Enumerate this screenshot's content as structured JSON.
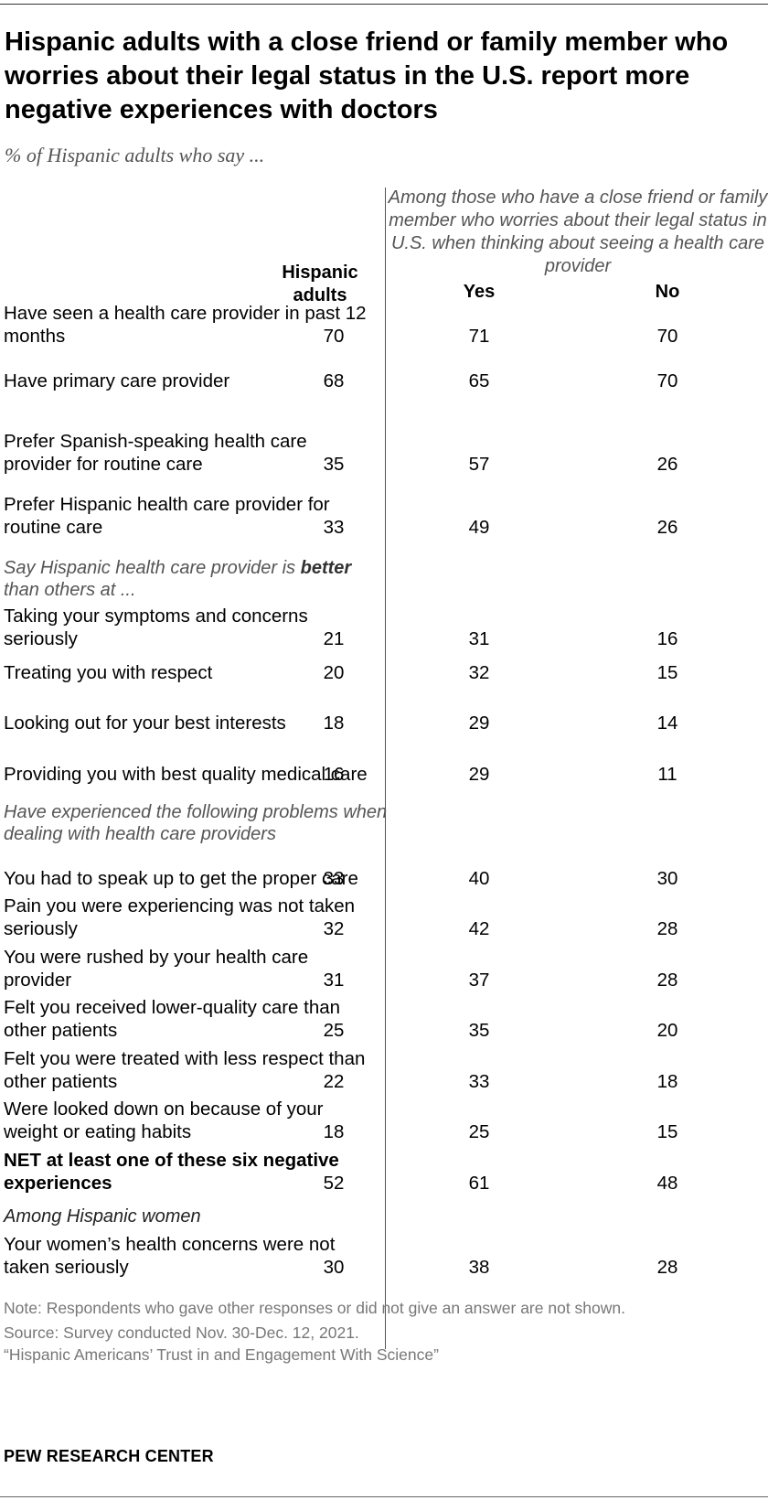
{
  "title": "Hispanic adults with a close friend or family member who worries about their legal status in the U.S. report more negative experiences with doctors",
  "subtitle": "% of Hispanic adults who say ...",
  "group_header": "Among those who have a close friend or family member who worries about their legal status in U.S. when thinking about seeing a health care provider",
  "columns": [
    "Hispanic adults",
    "Yes",
    "No"
  ],
  "sections": {
    "better_prefix": "Say Hispanic health care provider is ",
    "better_word": "better",
    "better_suffix": " than others at ...",
    "problems": "Have experienced the following problems when dealing with health care providers",
    "women": "Among Hispanic women"
  },
  "chart_data": {
    "type": "table",
    "title": "Hispanic adults with a close friend or family member who worries about their legal status in the U.S. report more negative experiences with doctors",
    "subtitle": "% of Hispanic adults who say ...",
    "columns": [
      "Hispanic adults",
      "Yes",
      "No"
    ],
    "rows": [
      {
        "label": "Have seen a health care provider in past 12 months",
        "values": [
          70,
          71,
          70
        ]
      },
      {
        "label": "Have primary care provider",
        "values": [
          68,
          65,
          70
        ]
      },
      {
        "label": "Prefer Spanish-speaking health care provider for routine care",
        "values": [
          35,
          57,
          26
        ]
      },
      {
        "label": "Prefer Hispanic health care provider for routine care",
        "values": [
          33,
          49,
          26
        ]
      },
      {
        "label": "Taking your symptoms and concerns seriously",
        "values": [
          21,
          31,
          16
        ]
      },
      {
        "label": "Treating you with respect",
        "values": [
          20,
          32,
          15
        ]
      },
      {
        "label": "Looking out for your best interests",
        "values": [
          18,
          29,
          14
        ]
      },
      {
        "label": "Providing you with best quality medical care",
        "values": [
          16,
          29,
          11
        ]
      },
      {
        "label": "You had to speak up to get the proper care",
        "values": [
          33,
          40,
          30
        ]
      },
      {
        "label": "Pain you were experiencing was not taken seriously",
        "values": [
          32,
          42,
          28
        ]
      },
      {
        "label": "You were rushed by your health care provider",
        "values": [
          31,
          37,
          28
        ]
      },
      {
        "label": "Felt you received lower-quality care than other patients",
        "values": [
          25,
          35,
          20
        ]
      },
      {
        "label": "Felt you were treated with less respect than other patients",
        "values": [
          22,
          33,
          18
        ]
      },
      {
        "label": "Were looked down on because of your weight or eating habits",
        "values": [
          18,
          25,
          15
        ]
      },
      {
        "label": "NET at least one of these six negative experiences",
        "values": [
          52,
          61,
          48
        ]
      },
      {
        "label": "Your women’s health concerns were not taken seriously",
        "values": [
          30,
          38,
          28
        ]
      }
    ]
  },
  "footer": {
    "note": "Note: Respondents who gave other responses or did not give an answer are not shown.",
    "source": "Source: Survey conducted Nov. 30-Dec. 12, 2021.",
    "report": "“Hispanic Americans’ Trust in and Engagement With Science”",
    "brand": "PEW RESEARCH CENTER"
  }
}
